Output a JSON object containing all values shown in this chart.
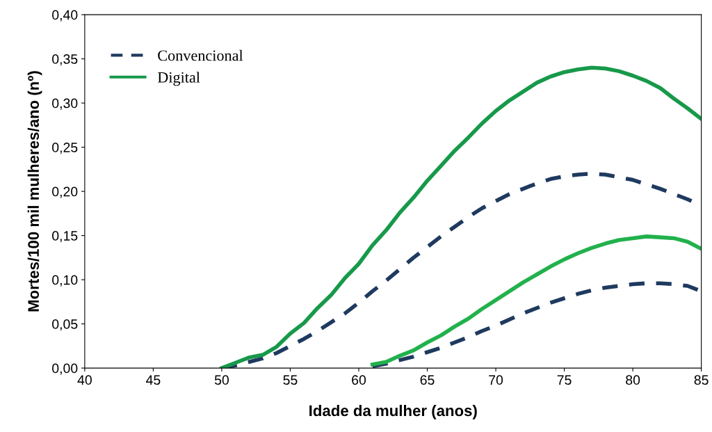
{
  "chart_data": {
    "type": "line",
    "xlabel": "Idade da mulher (anos)",
    "ylabel": "Mortes/100 mil mulheres/ano (nº)",
    "xlim": [
      40,
      85
    ],
    "xticks": [
      40,
      45,
      50,
      55,
      60,
      65,
      70,
      75,
      80,
      85
    ],
    "ylim": [
      0,
      0.4
    ],
    "yticks": [
      {
        "value": 0,
        "label": "0,00"
      },
      {
        "value": 0.05,
        "label": "0,05"
      },
      {
        "value": 0.1,
        "label": "0,10"
      },
      {
        "value": 0.15,
        "label": "0,15"
      },
      {
        "value": 0.2,
        "label": "0,20"
      },
      {
        "value": 0.25,
        "label": "0,25"
      },
      {
        "value": 0.3,
        "label": "0,30"
      },
      {
        "value": 0.35,
        "label": "0,35"
      },
      {
        "value": 0.4,
        "label": "0,40"
      }
    ],
    "grid": false,
    "legend": "top left",
    "marker": "none",
    "series": [
      {
        "name": "Convencional",
        "color": "#1f3a5f",
        "line_style": "dashed",
        "x": [
          50,
          51,
          52,
          53,
          54,
          55,
          56,
          57,
          58,
          59,
          60,
          61,
          62,
          63,
          64,
          65,
          66,
          67,
          68,
          69,
          70,
          71,
          72,
          73,
          74,
          75,
          76,
          77,
          78,
          79,
          80,
          81,
          82,
          83,
          84,
          85
        ],
        "values": [
          0,
          0.003,
          0.007,
          0.011,
          0.017,
          0.025,
          0.033,
          0.042,
          0.052,
          0.062,
          0.074,
          0.087,
          0.099,
          0.112,
          0.125,
          0.137,
          0.149,
          0.16,
          0.171,
          0.181,
          0.189,
          0.197,
          0.203,
          0.209,
          0.214,
          0.217,
          0.219,
          0.22,
          0.219,
          0.216,
          0.213,
          0.208,
          0.203,
          0.197,
          0.191,
          0.184
        ]
      },
      {
        "name": "Digital",
        "color": "#17994a",
        "line_style": "solid",
        "x": [
          50,
          51,
          52,
          53,
          54,
          55,
          56,
          57,
          58,
          59,
          60,
          61,
          62,
          63,
          64,
          65,
          66,
          67,
          68,
          69,
          70,
          71,
          72,
          73,
          74,
          75,
          76,
          77,
          78,
          79,
          80,
          81,
          82,
          83,
          84,
          85
        ],
        "values": [
          0,
          0.006,
          0.012,
          0.015,
          0.024,
          0.039,
          0.051,
          0.068,
          0.083,
          0.102,
          0.118,
          0.139,
          0.156,
          0.176,
          0.193,
          0.212,
          0.229,
          0.246,
          0.261,
          0.277,
          0.291,
          0.303,
          0.313,
          0.323,
          0.33,
          0.335,
          0.338,
          0.34,
          0.339,
          0.336,
          0.331,
          0.325,
          0.317,
          0.305,
          0.294,
          0.282
        ]
      },
      {
        "color": "#1f3a5f",
        "line_style": "dashed",
        "x": [
          61,
          62,
          63,
          64,
          65,
          66,
          67,
          68,
          69,
          70,
          71,
          72,
          73,
          74,
          75,
          76,
          77,
          78,
          79,
          80,
          81,
          82,
          83,
          84,
          85
        ],
        "values": [
          0.002,
          0.005,
          0.009,
          0.013,
          0.018,
          0.023,
          0.029,
          0.035,
          0.042,
          0.048,
          0.055,
          0.062,
          0.068,
          0.074,
          0.079,
          0.084,
          0.088,
          0.091,
          0.093,
          0.095,
          0.096,
          0.096,
          0.095,
          0.093,
          0.087
        ]
      },
      {
        "color": "#22b14c",
        "line_style": "solid",
        "x": [
          61,
          62,
          63,
          64,
          65,
          66,
          67,
          68,
          69,
          70,
          71,
          72,
          73,
          74,
          75,
          76,
          77,
          78,
          79,
          80,
          81,
          82,
          83,
          84,
          85
        ],
        "values": [
          0.004,
          0.007,
          0.014,
          0.02,
          0.029,
          0.037,
          0.047,
          0.056,
          0.067,
          0.077,
          0.087,
          0.097,
          0.106,
          0.115,
          0.123,
          0.13,
          0.136,
          0.141,
          0.145,
          0.147,
          0.149,
          0.148,
          0.147,
          0.143,
          0.135
        ]
      }
    ]
  }
}
